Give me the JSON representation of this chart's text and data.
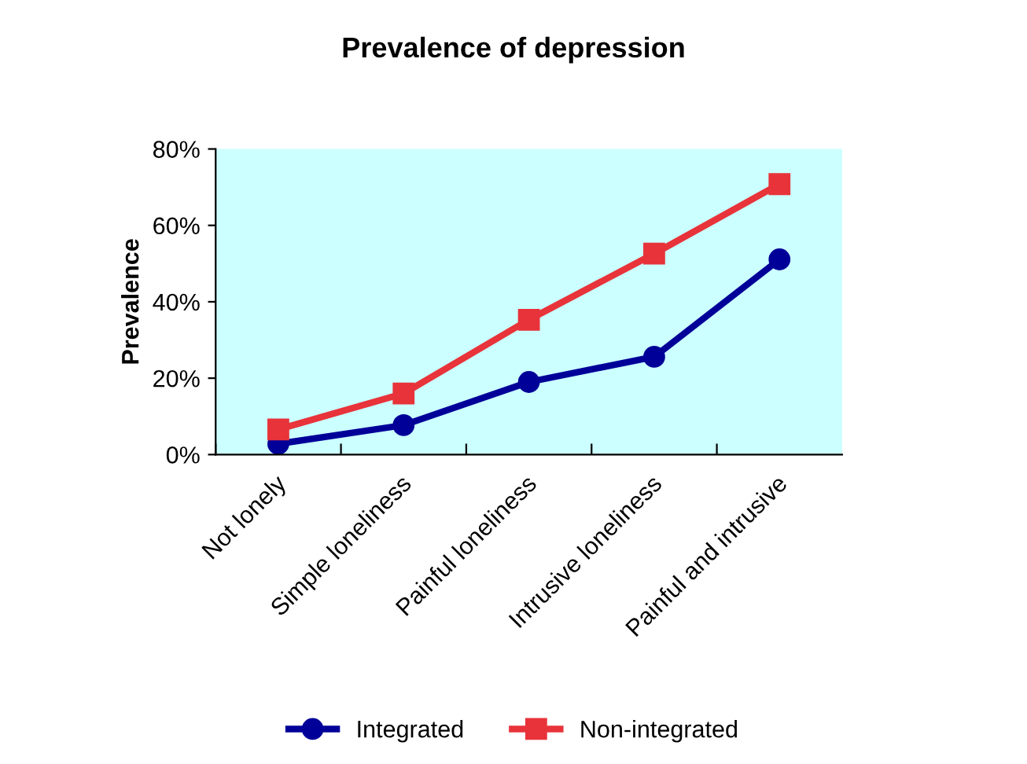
{
  "chart_data": {
    "type": "line",
    "title": "Prevalence of depression",
    "ylabel": "Prevalence",
    "categories": [
      "Not lonely",
      "Simple loneliness",
      "Painful loneliness",
      "Intrusive loneliness",
      "Painful and intrusive"
    ],
    "series": [
      {
        "name": "Integrated",
        "color": "#000099",
        "marker": "circle",
        "values": [
          2.8,
          7.7,
          19,
          25.6,
          51.1
        ]
      },
      {
        "name": "Non-integrated",
        "color": "#e8333a",
        "marker": "square",
        "values": [
          6.6,
          16,
          35.3,
          52.6,
          70.8
        ]
      }
    ],
    "ylim": [
      0,
      80
    ],
    "yticks": [
      {
        "value": 0,
        "label": "0%"
      },
      {
        "value": 20,
        "label": "20%"
      },
      {
        "value": 40,
        "label": "40%"
      },
      {
        "value": 60,
        "label": "60%"
      },
      {
        "value": 80,
        "label": "80%"
      }
    ],
    "grid": false,
    "legend": "bottom",
    "line_style": "solid"
  }
}
